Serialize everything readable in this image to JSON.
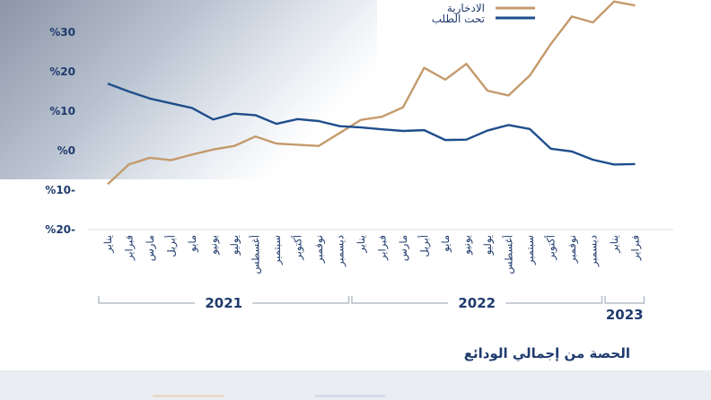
{
  "chart_data": {
    "type": "line",
    "ylim": [
      -20,
      40
    ],
    "yticks": [
      30,
      20,
      10,
      0,
      -10,
      -20
    ],
    "ytick_labels": [
      "%30",
      "%20",
      "%10",
      "%0",
      "%10-",
      "%20-"
    ],
    "categories": [
      "يناير",
      "فبراير",
      "مارس",
      "أبريل",
      "مايو",
      "يونيو",
      "يوليو",
      "أغسطس",
      "سبتمبر",
      "أكتوبر",
      "نوفمبر",
      "ديسمبر",
      "يناير",
      "فبراير",
      "مارس",
      "أبريل",
      "مايو",
      "يونيو",
      "يوليو",
      "أغسطس",
      "سبتمبر",
      "أكتوبر",
      "نوفمبر",
      "ديسمبر",
      "يناير",
      "فبراير"
    ],
    "year_groups": [
      {
        "label": "2021",
        "start": 0,
        "end": 11
      },
      {
        "label": "2022",
        "start": 12,
        "end": 23
      },
      {
        "label": "2023",
        "start": 24,
        "end": 25
      }
    ],
    "series": [
      {
        "name": "الادخارية",
        "color": "#c49a6c",
        "values": [
          -8.5,
          -3.5,
          -1.8,
          -2.4,
          -1.0,
          0.3,
          1.2,
          3.6,
          1.8,
          1.5,
          1.2,
          4.5,
          7.8,
          8.6,
          11.0,
          21.0,
          18.0,
          22.0,
          15.2,
          14.0,
          19.0,
          27.0,
          34.0,
          32.5,
          37.8,
          36.8
        ]
      },
      {
        "name": "تحت الطلب",
        "color": "#1f4e8c",
        "values": [
          17.0,
          15.0,
          13.2,
          12.0,
          10.8,
          7.9,
          9.4,
          9.0,
          6.8,
          8.0,
          7.5,
          6.2,
          5.9,
          5.4,
          5.0,
          5.2,
          2.7,
          2.8,
          5.1,
          6.5,
          5.5,
          0.5,
          -0.2,
          -2.3,
          -3.5,
          -3.4
        ]
      }
    ],
    "grid": false,
    "legend_position": "top-right"
  },
  "legend": {
    "savings_label": "الادخارية",
    "demand_label": "تحت الطلب"
  },
  "footer": {
    "title": "الحصة من إجمالي الودائع"
  },
  "colors": {
    "savings": "#c49a6c",
    "demand": "#1f4e8c",
    "text": "#1f3b6d",
    "bracket": "#b7bec9"
  }
}
